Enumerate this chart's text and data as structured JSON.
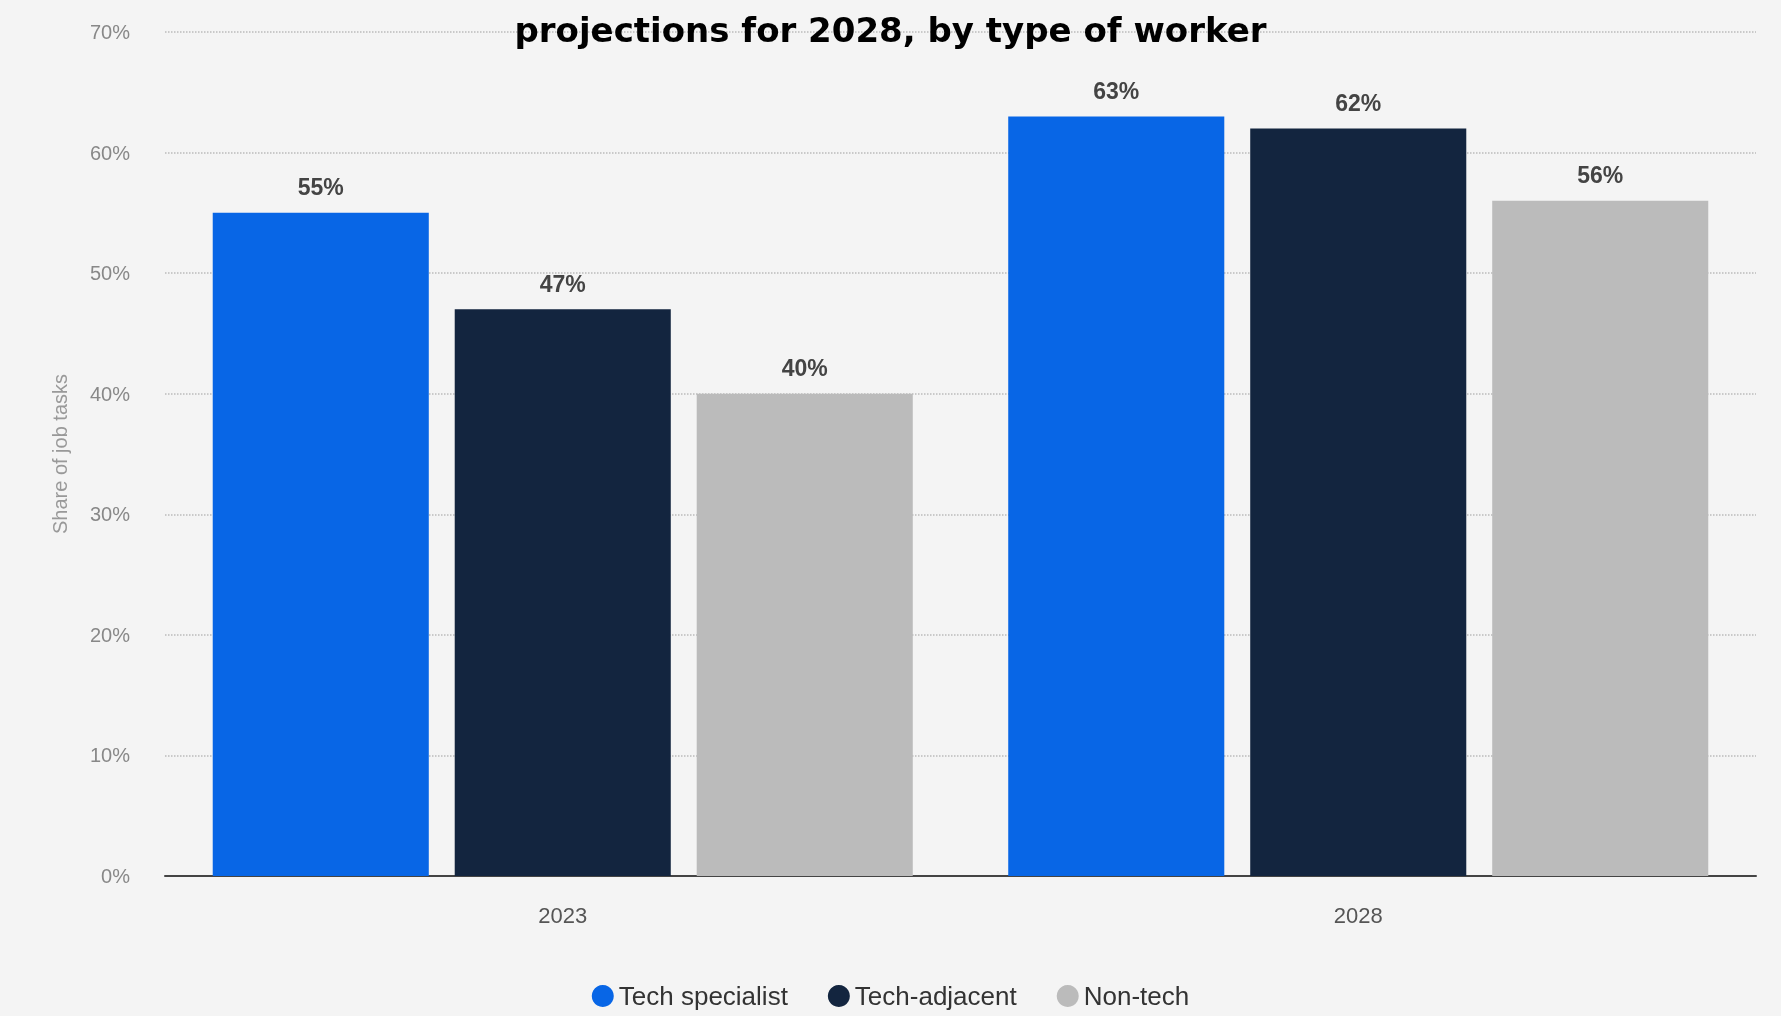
{
  "chart_data": {
    "type": "bar",
    "title": "projections for 2028, by type of worker",
    "ylabel": "Share of job tasks",
    "categories": [
      "2023",
      "2028"
    ],
    "series": [
      {
        "name": "Tech specialist",
        "color": "#0866e6",
        "values": [
          55,
          63
        ],
        "value_labels": [
          "55%",
          "63%"
        ]
      },
      {
        "name": "Tech-adjacent",
        "color": "#13253f",
        "values": [
          47,
          62
        ],
        "value_labels": [
          "47%",
          "62%"
        ]
      },
      {
        "name": "Non-tech",
        "color": "#bbbbbb",
        "values": [
          40,
          56
        ],
        "value_labels": [
          "40%",
          "56%"
        ]
      }
    ],
    "ylim": [
      0,
      70
    ],
    "yticks": [
      {
        "value": 0,
        "label": "0%"
      },
      {
        "value": 10,
        "label": "10%"
      },
      {
        "value": 20,
        "label": "20%"
      },
      {
        "value": 30,
        "label": "30%"
      },
      {
        "value": 40,
        "label": "40%"
      },
      {
        "value": 50,
        "label": "50%"
      },
      {
        "value": 60,
        "label": "60%"
      },
      {
        "value": 70,
        "label": "70%"
      }
    ],
    "grid": "y",
    "legend": "bottom"
  }
}
